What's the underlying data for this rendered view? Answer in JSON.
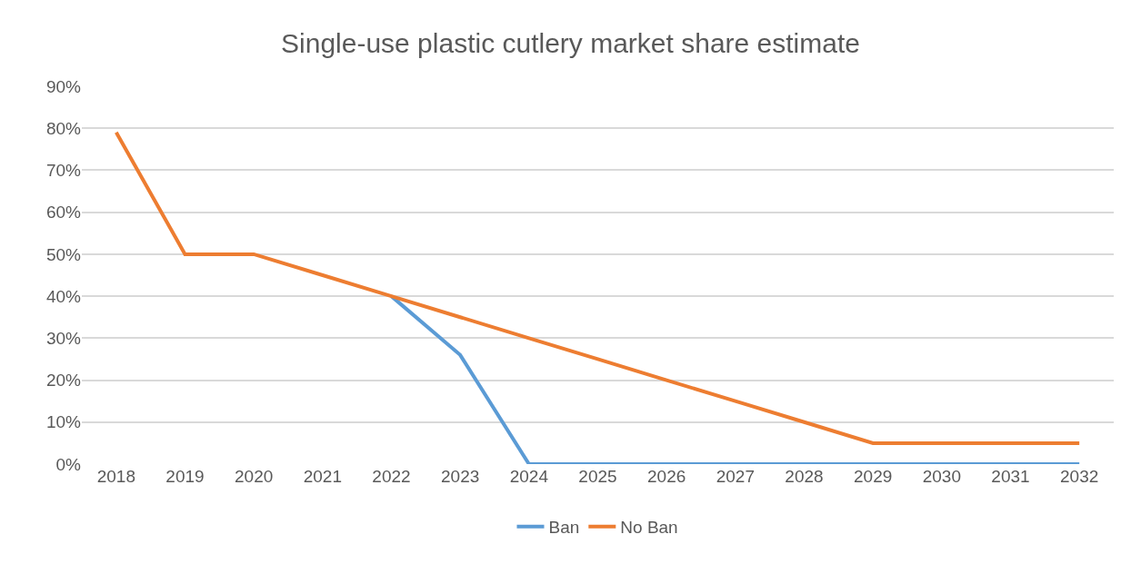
{
  "chart_data": {
    "type": "line",
    "title": "Single-use plastic cutlery market share estimate",
    "categories": [
      "2018",
      "2019",
      "2020",
      "2021",
      "2022",
      "2023",
      "2024",
      "2025",
      "2026",
      "2027",
      "2028",
      "2029",
      "2030",
      "2031",
      "2032"
    ],
    "series": [
      {
        "name": "Ban",
        "color": "#5b9bd5",
        "values": [
          null,
          null,
          null,
          null,
          40,
          26,
          0,
          0,
          0,
          0,
          0,
          0,
          0,
          0,
          0
        ]
      },
      {
        "name": "No Ban",
        "color": "#ed7d31",
        "values": [
          79,
          50,
          50,
          45,
          40,
          35,
          30,
          25,
          20,
          15,
          10,
          5,
          5,
          5,
          5
        ]
      }
    ],
    "ylim": [
      0,
      90
    ],
    "yticks": [
      {
        "value": 0,
        "label": "0%"
      },
      {
        "value": 10,
        "label": "10%"
      },
      {
        "value": 20,
        "label": "20%"
      },
      {
        "value": 30,
        "label": "30%"
      },
      {
        "value": 40,
        "label": "40%"
      },
      {
        "value": 50,
        "label": "50%"
      },
      {
        "value": 60,
        "label": "60%"
      },
      {
        "value": 70,
        "label": "70%"
      },
      {
        "value": 80,
        "label": "80%"
      },
      {
        "value": 90,
        "label": "90%"
      }
    ],
    "grid": "y",
    "legend": "bottom",
    "marker": "none",
    "line_style": "solid"
  }
}
